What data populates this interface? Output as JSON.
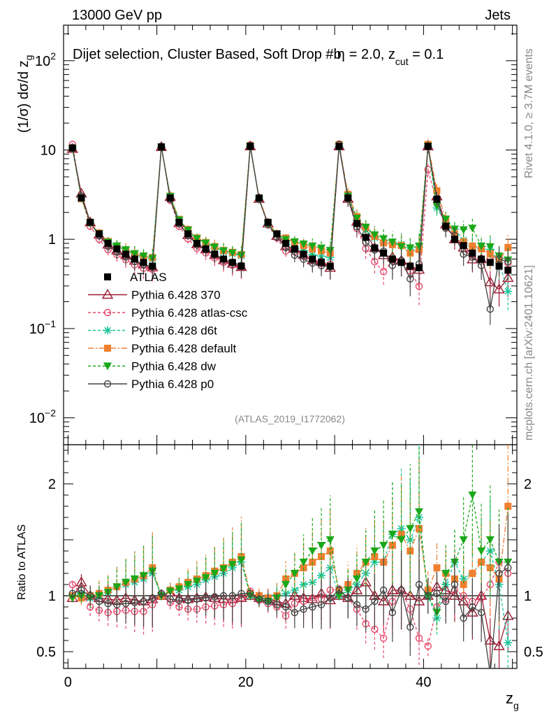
{
  "header": {
    "left": "13000 GeV pp",
    "right": "Jets",
    "rivet": "Rivet 4.1.0, ≥ 3.7M events",
    "mcplots": "mcplots.cern.ch [arXiv:2401.10621]",
    "analysis_id": "(ATLAS_2019_I1772062)"
  },
  "chart_data": {
    "type": "line",
    "title": "Dijet selection, Cluster Based, Soft Drop #b",
    "title_suffix": "= 2.0, z",
    "title_sub": "cut",
    "title_end": " = 0.1",
    "title_beta": "η",
    "ylabel_main": "(1/σ) dσ/d z",
    "ylabel_sub": "g",
    "ylabel_ratio": "Ratio to ATLAS",
    "xlabel": "z",
    "xlabel_sub": "g",
    "xlim": [
      -0.5,
      50.5
    ],
    "ylim_main": [
      0.005,
      250
    ],
    "ylim_ratio": [
      0.35,
      2.35
    ],
    "x_ticks": [
      "0",
      "20",
      "40"
    ],
    "y_ticks_main": [
      "10^-2",
      "10^-1",
      "1",
      "10",
      "10^2"
    ],
    "y_ticks_ratio": [
      "0.5",
      "1",
      "2"
    ],
    "ref_name": "ATLAS",
    "ref_color": "#000000",
    "ref_values": [
      10.5,
      2.9,
      1.55,
      1.15,
      0.9,
      0.78,
      0.68,
      0.6,
      0.55,
      0.5,
      10.8,
      2.9,
      1.55,
      1.15,
      0.9,
      0.78,
      0.68,
      0.6,
      0.55,
      0.5,
      11.0,
      2.9,
      1.55,
      1.15,
      0.9,
      0.78,
      0.68,
      0.6,
      0.55,
      0.5,
      11.0,
      2.9,
      1.5,
      1.05,
      0.8,
      0.7,
      0.6,
      0.55,
      0.5,
      0.48,
      11.0,
      2.8,
      1.4,
      1.0,
      0.85,
      0.7,
      0.6,
      0.55,
      0.5,
      0.45
    ],
    "series": [
      {
        "name": "Pythia 6.428 370",
        "color": "#9a1a30",
        "dash": "",
        "marker": "triangle",
        "ratio": [
          0.98,
          1.12,
          1.0,
          0.98,
          0.97,
          0.96,
          0.98,
          0.96,
          0.95,
          0.97,
          1.0,
          1.03,
          0.98,
          0.97,
          0.98,
          0.99,
          0.98,
          0.97,
          0.97,
          0.98,
          1.0,
          0.98,
          0.97,
          0.95,
          0.93,
          1.0,
          0.98,
          0.97,
          1.02,
          0.96,
          1.0,
          0.98,
          1.05,
          1.12,
          1.0,
          0.95,
          1.05,
          1.05,
          1.0,
          0.95,
          1.0,
          1.08,
          1.05,
          1.0,
          0.95,
          0.85,
          1.0,
          0.6,
          0.55,
          0.82
        ]
      },
      {
        "name": "Pythia 6.428 atlas-csc",
        "color": "#e8476a",
        "dash": "4,3",
        "marker": "circle-open",
        "ratio": [
          1.1,
          1.02,
          0.9,
          0.87,
          0.85,
          0.86,
          0.87,
          0.86,
          0.86,
          0.92,
          1.02,
          0.94,
          0.9,
          0.88,
          0.88,
          0.9,
          0.91,
          0.92,
          0.93,
          0.98,
          1.04,
          0.96,
          0.93,
          0.9,
          0.82,
          0.93,
          0.95,
          0.98,
          0.97,
          1.05,
          1.06,
          0.98,
          0.88,
          0.75,
          0.7,
          0.62,
          0.95,
          1.05,
          0.88,
          0.62,
          0.55,
          0.9,
          0.97,
          1.05,
          1.0,
          0.95,
          0.98,
          1.1,
          1.3,
          1.2
        ],
        "ratio_override": [
          1.1,
          1.02,
          0.9,
          0.87,
          0.85,
          0.86,
          0.87,
          0.86,
          0.86,
          0.92,
          1.02,
          0.94,
          0.9,
          0.88,
          0.88,
          0.9,
          0.91,
          0.92,
          0.93,
          0.98,
          1.04,
          0.96,
          0.93,
          0.9,
          0.82,
          0.93,
          0.95,
          0.98,
          0.97,
          1.05,
          1.06,
          0.98,
          0.88,
          0.75,
          0.7,
          0.62,
          0.95,
          1.05,
          0.88,
          0.62,
          0.55,
          0.9,
          0.97,
          1.05,
          1.0,
          0.95,
          0.98,
          1.1,
          1.3,
          1.2
        ]
      },
      {
        "name": "Pythia 6.428 d6t",
        "color": "#17c398",
        "dash": "4,3",
        "marker": "star",
        "ratio": [
          1.0,
          1.02,
          0.98,
          1.0,
          1.03,
          1.08,
          1.1,
          1.12,
          1.15,
          1.2,
          1.0,
          1.05,
          1.05,
          1.08,
          1.1,
          1.14,
          1.17,
          1.2,
          1.25,
          1.3,
          1.0,
          0.98,
          0.95,
          1.0,
          1.02,
          1.05,
          1.1,
          1.12,
          1.18,
          1.25,
          1.0,
          1.05,
          1.1,
          1.2,
          1.3,
          1.3,
          1.55,
          1.6,
          1.5,
          1.7,
          1.0,
          0.8,
          1.1,
          1.3,
          1.15,
          1.2,
          1.3,
          1.4,
          1.1,
          0.58
        ]
      },
      {
        "name": "Pythia 6.428 default",
        "color": "#f08030",
        "dash": "8,3,2,3",
        "marker": "square",
        "ratio": [
          1.0,
          0.98,
          1.0,
          1.02,
          1.05,
          1.08,
          1.12,
          1.15,
          1.18,
          1.25,
          1.0,
          1.05,
          1.08,
          1.12,
          1.15,
          1.18,
          1.22,
          1.25,
          1.3,
          1.35,
          1.02,
          1.0,
          0.98,
          1.0,
          1.15,
          1.2,
          1.25,
          1.3,
          1.35,
          1.4,
          1.05,
          1.1,
          1.2,
          1.3,
          1.35,
          1.3,
          1.45,
          1.55,
          1.4,
          1.6,
          1.05,
          1.25,
          1.2,
          1.15,
          1.1,
          1.2,
          1.3,
          1.25,
          1.15,
          1.8
        ]
      },
      {
        "name": "Pythia 6.428 dw",
        "color": "#1aa81a",
        "dash": "4,3",
        "marker": "triangle-down",
        "ratio": [
          0.98,
          1.0,
          0.98,
          1.0,
          1.03,
          1.08,
          1.12,
          1.15,
          1.18,
          1.22,
          1.0,
          1.04,
          1.06,
          1.1,
          1.13,
          1.16,
          1.2,
          1.24,
          1.28,
          1.32,
          1.0,
          0.96,
          0.95,
          0.98,
          1.1,
          1.2,
          1.3,
          1.4,
          1.45,
          1.5,
          1.0,
          1.05,
          1.15,
          1.3,
          1.4,
          1.45,
          1.55,
          1.5,
          1.6,
          1.75,
          1.0,
          0.85,
          1.2,
          1.3,
          1.5,
          1.9,
          1.4,
          1.5,
          1.3,
          1.3
        ]
      },
      {
        "name": "Pythia 6.428 p0",
        "color": "#444444",
        "dash": "",
        "marker": "circle-open",
        "ratio": [
          1.02,
          1.05,
          1.0,
          0.95,
          0.93,
          0.92,
          0.93,
          0.94,
          0.95,
          0.98,
          1.02,
          0.97,
          0.96,
          0.96,
          0.97,
          0.98,
          0.99,
          1.0,
          1.0,
          1.02,
          1.02,
          0.97,
          0.95,
          0.92,
          0.9,
          0.85,
          0.88,
          0.9,
          0.92,
          0.98,
          1.05,
          0.98,
          0.92,
          0.88,
          0.95,
          1.05,
          0.85,
          1.05,
          0.72,
          1.1,
          1.0,
          1.02,
          0.95,
          1.1,
          0.8,
          0.9,
          0.85,
          0.3,
          1.2,
          1.25
        ]
      }
    ]
  }
}
